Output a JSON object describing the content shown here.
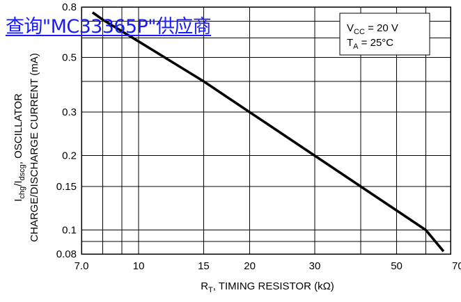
{
  "watermark": "查询\"MC33365P\"供应商",
  "chart_data": {
    "type": "line",
    "scale": {
      "x": "log",
      "y": "log"
    },
    "xlim": [
      7.0,
      70
    ],
    "ylim": [
      0.08,
      0.8
    ],
    "grid": true,
    "x_ticks": [
      {
        "value": 7.0,
        "label": "7.0"
      },
      {
        "value": 10,
        "label": "10"
      },
      {
        "value": 15,
        "label": "15"
      },
      {
        "value": 20,
        "label": "20"
      },
      {
        "value": 30,
        "label": "30"
      },
      {
        "value": 50,
        "label": "50"
      },
      {
        "value": 70,
        "label": "70"
      }
    ],
    "x_grid": [
      8,
      9,
      10,
      15,
      20,
      30,
      40,
      50,
      60
    ],
    "y_ticks": [
      {
        "value": 0.08,
        "label": "0.08"
      },
      {
        "value": 0.1,
        "label": "0.1"
      },
      {
        "value": 0.15,
        "label": "0.15"
      },
      {
        "value": 0.2,
        "label": "0.2"
      },
      {
        "value": 0.3,
        "label": "0.3"
      },
      {
        "value": 0.5,
        "label": "0.5"
      },
      {
        "value": 0.8,
        "label": "0.8"
      }
    ],
    "y_grid": [
      0.09,
      0.1,
      0.15,
      0.2,
      0.3,
      0.4,
      0.5,
      0.6,
      0.7
    ],
    "series": [
      {
        "x": [
          7.5,
          8.0,
          10,
          15,
          20,
          30,
          40,
          50,
          60,
          67
        ],
        "y": [
          0.76,
          0.71,
          0.58,
          0.4,
          0.3,
          0.2,
          0.15,
          0.12,
          0.1,
          0.082
        ]
      }
    ],
    "xlabel": {
      "main": "R",
      "sub": "T",
      "rest": ", TIMING RESISTOR (kΩ)"
    },
    "ylabel": {
      "line1": {
        "p1": "I",
        "s1": "chg",
        "p2": "/I",
        "s2": "dscg",
        "p3": ", OSCILLATOR"
      },
      "line2": "CHARGE/DISCHARGE CURRENT (mA)"
    },
    "annotation": {
      "line1": {
        "main": "V",
        "sub": "CC",
        "rest": " = 20 V"
      },
      "line2": {
        "main": "T",
        "sub": "A",
        "rest": " = 25°C"
      }
    }
  }
}
